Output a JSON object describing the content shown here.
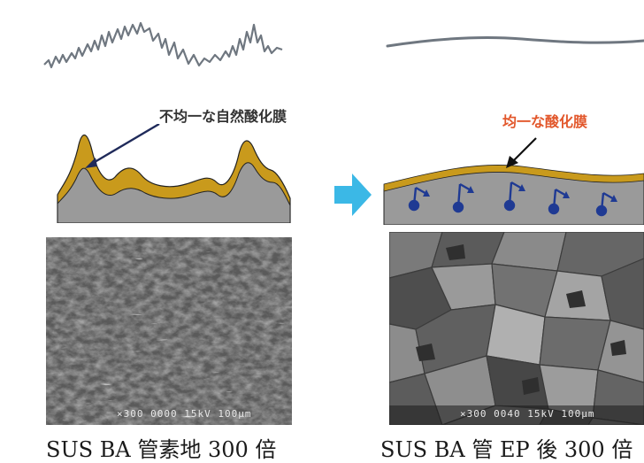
{
  "left": {
    "annotation": "不均一な自然酸化膜",
    "sem_footer": "×300  0000  15kV 100μm",
    "caption": "SUS BA 管素地 300 倍"
  },
  "right": {
    "annotation": "均一な酸化膜",
    "sem_footer": "×300  0040  15kV 100μm",
    "caption": "SUS BA 管 EP 後 300 倍"
  },
  "colors": {
    "oxide": "#c99a1c",
    "oxide_label_left": "#333333",
    "oxide_label_right": "#e2572b",
    "substrate": "#9a9a9a",
    "arrow_blue": "#3bb8e6",
    "spin_blue": "#1f3a93",
    "profile_line": "#6f7780"
  }
}
